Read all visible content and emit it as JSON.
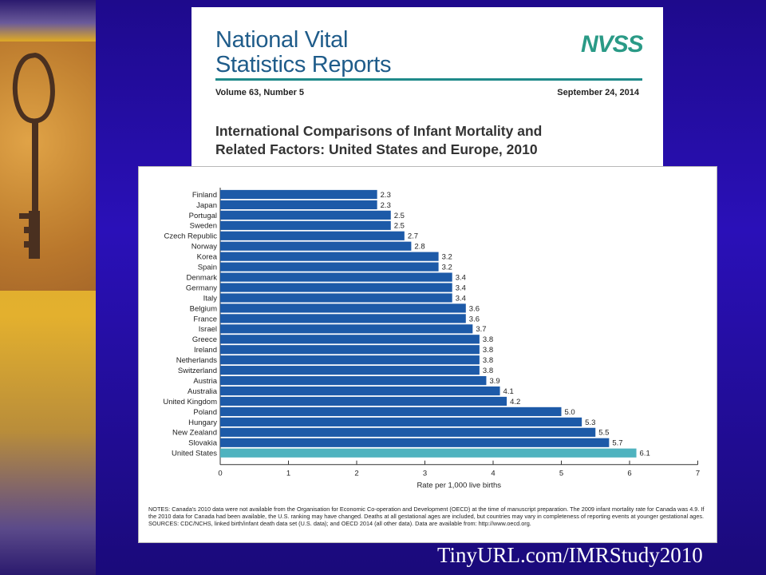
{
  "report_header": {
    "title": "National Vital\nStatistics Reports",
    "logo_text": "NVSS",
    "volume": "Volume 63, Number 5",
    "date": "September 24, 2014",
    "subtitle": "International Comparisons of Infant Mortality and\nRelated Factors: United States and Europe, 2010"
  },
  "chart_data": {
    "type": "bar",
    "orientation": "horizontal",
    "categories": [
      "Finland",
      "Japan",
      "Portugal",
      "Sweden",
      "Czech Republic",
      "Norway",
      "Korea",
      "Spain",
      "Denmark",
      "Germany",
      "Italy",
      "Belgium",
      "France",
      "Israel",
      "Greece",
      "Ireland",
      "Netherlands",
      "Switzerland",
      "Austria",
      "Australia",
      "United Kingdom",
      "Poland",
      "Hungary",
      "New Zealand",
      "Slovakia",
      "United States"
    ],
    "values": [
      2.3,
      2.3,
      2.5,
      2.5,
      2.7,
      2.8,
      3.2,
      3.2,
      3.4,
      3.4,
      3.4,
      3.6,
      3.6,
      3.7,
      3.8,
      3.8,
      3.8,
      3.8,
      3.9,
      4.1,
      4.2,
      5.0,
      5.3,
      5.5,
      5.7,
      6.1
    ],
    "value_labels": [
      "2.3",
      "2.3",
      "2.5",
      "2.5",
      "2.7",
      "2.8",
      "3.2",
      "3.2",
      "3.4",
      "3.4",
      "3.4",
      "3.6",
      "3.6",
      "3.7",
      "3.8",
      "3.8",
      "3.8",
      "3.8",
      "3.9",
      "4.1",
      "4.2",
      "5.0",
      "5.3",
      "5.5",
      "5.7",
      "6.1"
    ],
    "highlight_category": "United States",
    "xlabel": "Rate per 1,000 live births",
    "xlim": [
      0,
      7
    ],
    "xticks": [
      "0",
      "1",
      "2",
      "3",
      "4",
      "5",
      "6",
      "7"
    ],
    "grid": false,
    "colors": {
      "bar": "#1d5aa8",
      "highlight": "#4fb3bf"
    }
  },
  "notes": {
    "text": "NOTES: Canada's 2010 data were not available from the Organisation for Economic Co-operation and Development (OECD) at the time of manuscript preparation. The 2009 infant mortality rate for Canada was 4.9. If the 2010 data for Canada had been available, the U.S. ranking may have changed. Deaths at all gestational ages are included, but countries may vary in completeness of reporting events at younger gestational ages.",
    "sources": "SOURCES: CDC/NCHS, linked birth/infant death data set (U.S. data); and OECD 2014 (all other data). Data are available from: http://www.oecd.org."
  },
  "caption": "TinyURL.com/IMRStudy2010",
  "decor": {
    "left_image": "antique-key-photo"
  }
}
